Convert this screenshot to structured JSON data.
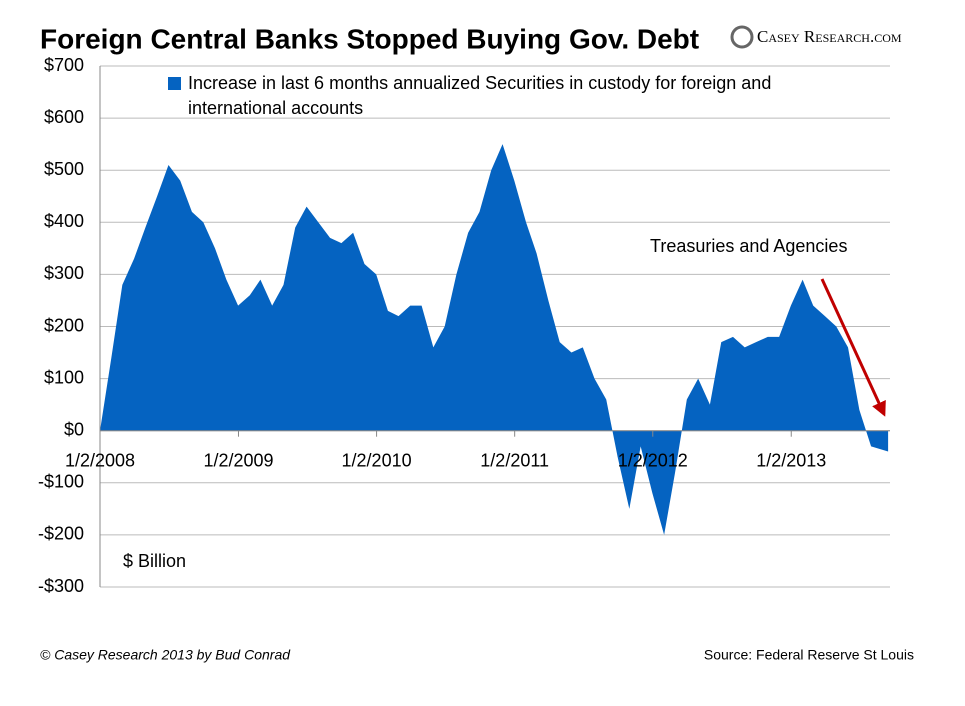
{
  "chart_data": {
    "type": "area",
    "title": "Foreign Central Banks Stopped Buying Gov. Debt",
    "logo": "Casey Research.com",
    "y_label": "$ Billion",
    "annotation": "Treasuries and Agencies",
    "footer_left": "© Casey Research 2013 by Bud Conrad",
    "footer_right": "Source: Federal Reserve St Louis",
    "legend": "top",
    "grid": true,
    "xlim": [
      "2008-01-02",
      "2013-09-20"
    ],
    "xticks": [
      {
        "value": "2008-01-02",
        "label": "1/2/2008"
      },
      {
        "value": "2009-01-02",
        "label": "1/2/2009"
      },
      {
        "value": "2010-01-02",
        "label": "1/2/2010"
      },
      {
        "value": "2011-01-02",
        "label": "1/2/2011"
      },
      {
        "value": "2012-01-02",
        "label": "1/2/2012"
      },
      {
        "value": "2013-01-02",
        "label": "1/2/2013"
      }
    ],
    "ylim": [
      -300,
      700
    ],
    "yticks": [
      {
        "value": -300,
        "label": "-$300"
      },
      {
        "value": -200,
        "label": "-$200"
      },
      {
        "value": -100,
        "label": "-$100"
      },
      {
        "value": 0,
        "label": "$0"
      },
      {
        "value": 100,
        "label": "$100"
      },
      {
        "value": 200,
        "label": "$200"
      },
      {
        "value": 300,
        "label": "$300"
      },
      {
        "value": 400,
        "label": "$400"
      },
      {
        "value": 500,
        "label": "$500"
      },
      {
        "value": 600,
        "label": "$600"
      },
      {
        "value": 700,
        "label": "$700"
      }
    ],
    "x": [
      "2008-01-02",
      "2008-02-01",
      "2008-03-01",
      "2008-04-01",
      "2008-05-01",
      "2008-06-01",
      "2008-07-01",
      "2008-08-01",
      "2008-09-01",
      "2008-10-01",
      "2008-11-01",
      "2008-12-01",
      "2009-01-01",
      "2009-02-01",
      "2009-03-01",
      "2009-04-01",
      "2009-05-01",
      "2009-06-01",
      "2009-07-01",
      "2009-08-01",
      "2009-09-01",
      "2009-10-01",
      "2009-11-01",
      "2009-12-01",
      "2010-01-01",
      "2010-02-01",
      "2010-03-01",
      "2010-04-01",
      "2010-05-01",
      "2010-06-01",
      "2010-07-01",
      "2010-08-01",
      "2010-09-01",
      "2010-10-01",
      "2010-11-01",
      "2010-12-01",
      "2011-01-01",
      "2011-02-01",
      "2011-03-01",
      "2011-04-01",
      "2011-05-01",
      "2011-06-01",
      "2011-07-01",
      "2011-08-01",
      "2011-09-01",
      "2011-10-01",
      "2011-11-01",
      "2011-12-01",
      "2012-01-01",
      "2012-02-01",
      "2012-03-01",
      "2012-04-01",
      "2012-05-01",
      "2012-06-01",
      "2012-07-01",
      "2012-08-01",
      "2012-09-01",
      "2012-10-01",
      "2012-11-01",
      "2012-12-01",
      "2013-01-01",
      "2013-02-01",
      "2013-03-01",
      "2013-04-01",
      "2013-05-01",
      "2013-06-01",
      "2013-07-01",
      "2013-08-01",
      "2013-09-15"
    ],
    "series": [
      {
        "name": "Increase in last 6 months annualized Securities in custody for foreign and international accounts",
        "color": "#0563c1",
        "values": [
          0,
          140,
          280,
          330,
          390,
          450,
          510,
          480,
          420,
          400,
          350,
          290,
          240,
          260,
          290,
          240,
          280,
          390,
          430,
          400,
          370,
          360,
          380,
          320,
          300,
          230,
          220,
          240,
          240,
          160,
          200,
          300,
          380,
          420,
          500,
          550,
          480,
          400,
          340,
          250,
          170,
          150,
          160,
          100,
          60,
          -50,
          -150,
          -30,
          -120,
          -200,
          -80,
          60,
          100,
          50,
          170,
          180,
          160,
          170,
          180,
          180,
          240,
          290,
          240,
          220,
          200,
          160,
          40,
          -30,
          -40
        ]
      }
    ]
  }
}
